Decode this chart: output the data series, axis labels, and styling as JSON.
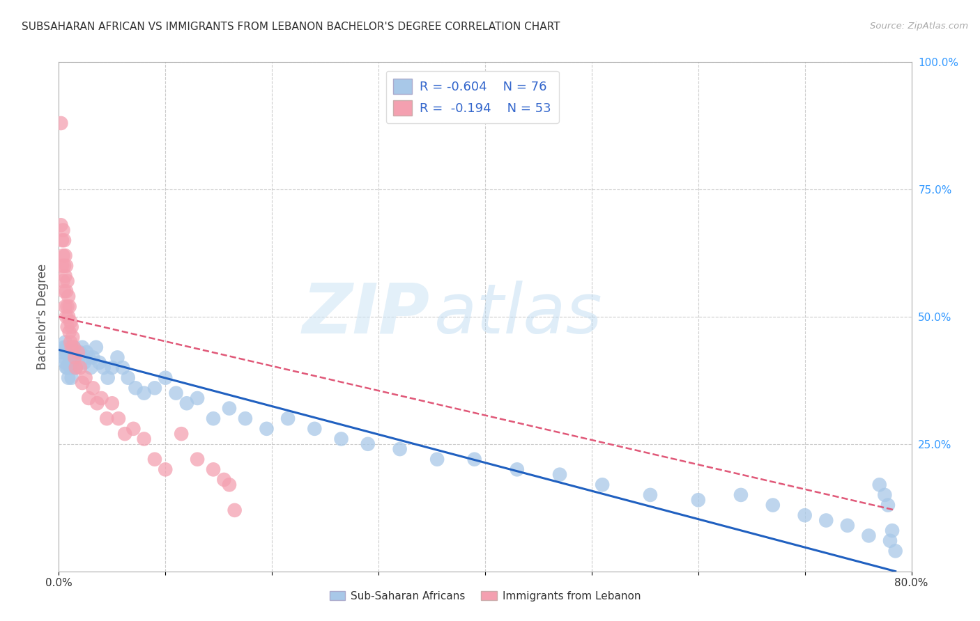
{
  "title": "SUBSAHARAN AFRICAN VS IMMIGRANTS FROM LEBANON BACHELOR'S DEGREE CORRELATION CHART",
  "source": "Source: ZipAtlas.com",
  "ylabel": "Bachelor's Degree",
  "legend1_r": "-0.604",
  "legend1_n": "76",
  "legend2_r": "-0.194",
  "legend2_n": "53",
  "blue_color": "#a8c8e8",
  "pink_color": "#f4a0b0",
  "blue_line_color": "#2060c0",
  "pink_line_color": "#e05878",
  "watermark_zip": "ZIP",
  "watermark_atlas": "atlas",
  "blue_scatter_x": [
    0.004,
    0.005,
    0.005,
    0.006,
    0.006,
    0.007,
    0.007,
    0.007,
    0.008,
    0.008,
    0.009,
    0.009,
    0.01,
    0.01,
    0.01,
    0.011,
    0.011,
    0.011,
    0.012,
    0.012,
    0.013,
    0.014,
    0.015,
    0.016,
    0.017,
    0.018,
    0.02,
    0.022,
    0.024,
    0.026,
    0.028,
    0.03,
    0.032,
    0.035,
    0.038,
    0.042,
    0.046,
    0.05,
    0.055,
    0.06,
    0.065,
    0.072,
    0.08,
    0.09,
    0.1,
    0.11,
    0.12,
    0.13,
    0.145,
    0.16,
    0.175,
    0.195,
    0.215,
    0.24,
    0.265,
    0.29,
    0.32,
    0.355,
    0.39,
    0.43,
    0.47,
    0.51,
    0.555,
    0.6,
    0.64,
    0.67,
    0.7,
    0.72,
    0.74,
    0.76,
    0.77,
    0.775,
    0.778,
    0.78,
    0.782,
    0.785
  ],
  "blue_scatter_y": [
    0.43,
    0.44,
    0.42,
    0.45,
    0.41,
    0.44,
    0.43,
    0.4,
    0.43,
    0.4,
    0.44,
    0.38,
    0.44,
    0.43,
    0.41,
    0.44,
    0.42,
    0.4,
    0.43,
    0.38,
    0.41,
    0.44,
    0.42,
    0.4,
    0.43,
    0.41,
    0.43,
    0.44,
    0.41,
    0.43,
    0.42,
    0.4,
    0.42,
    0.44,
    0.41,
    0.4,
    0.38,
    0.4,
    0.42,
    0.4,
    0.38,
    0.36,
    0.35,
    0.36,
    0.38,
    0.35,
    0.33,
    0.34,
    0.3,
    0.32,
    0.3,
    0.28,
    0.3,
    0.28,
    0.26,
    0.25,
    0.24,
    0.22,
    0.22,
    0.2,
    0.19,
    0.17,
    0.15,
    0.14,
    0.15,
    0.13,
    0.11,
    0.1,
    0.09,
    0.07,
    0.17,
    0.15,
    0.13,
    0.06,
    0.08,
    0.04
  ],
  "pink_scatter_x": [
    0.002,
    0.002,
    0.003,
    0.003,
    0.004,
    0.004,
    0.004,
    0.005,
    0.005,
    0.005,
    0.006,
    0.006,
    0.006,
    0.007,
    0.007,
    0.007,
    0.008,
    0.008,
    0.008,
    0.009,
    0.009,
    0.01,
    0.01,
    0.011,
    0.011,
    0.012,
    0.012,
    0.013,
    0.014,
    0.015,
    0.016,
    0.018,
    0.02,
    0.022,
    0.025,
    0.028,
    0.032,
    0.036,
    0.04,
    0.045,
    0.05,
    0.056,
    0.062,
    0.07,
    0.08,
    0.09,
    0.1,
    0.115,
    0.13,
    0.145,
    0.155,
    0.16,
    0.165
  ],
  "pink_scatter_y": [
    0.88,
    0.68,
    0.65,
    0.6,
    0.67,
    0.62,
    0.57,
    0.65,
    0.6,
    0.55,
    0.62,
    0.58,
    0.52,
    0.6,
    0.55,
    0.5,
    0.57,
    0.52,
    0.48,
    0.54,
    0.5,
    0.52,
    0.47,
    0.49,
    0.45,
    0.48,
    0.44,
    0.46,
    0.44,
    0.42,
    0.4,
    0.43,
    0.4,
    0.37,
    0.38,
    0.34,
    0.36,
    0.33,
    0.34,
    0.3,
    0.33,
    0.3,
    0.27,
    0.28,
    0.26,
    0.22,
    0.2,
    0.27,
    0.22,
    0.2,
    0.18,
    0.17,
    0.12
  ],
  "blue_line_x": [
    0.0,
    0.785
  ],
  "blue_line_y": [
    0.435,
    0.0
  ],
  "pink_line_x": [
    0.0,
    0.785
  ],
  "pink_line_y": [
    0.5,
    0.12
  ],
  "xlim": [
    0.0,
    0.8
  ],
  "ylim": [
    0.0,
    1.0
  ],
  "background_color": "#ffffff",
  "grid_color": "#cccccc"
}
